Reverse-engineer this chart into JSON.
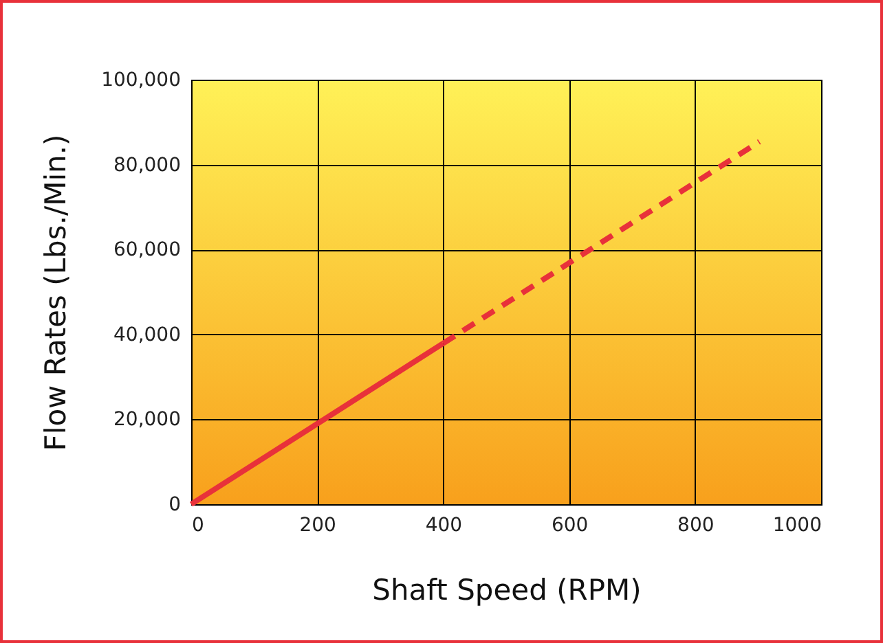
{
  "chart_data": {
    "type": "line",
    "xlabel": "Shaft Speed (RPM)",
    "ylabel": "Flow Rates (Lbs./Min.)",
    "xlim": [
      0,
      1000
    ],
    "xticks": [
      0,
      200,
      400,
      600,
      800,
      1000
    ],
    "ylim": [
      0,
      100000
    ],
    "yticks": [
      0,
      {
        "value": 20000,
        "label": "20,000"
      },
      {
        "value": 40000,
        "label": "40,000"
      },
      {
        "value": 60000,
        "label": "60,000"
      },
      {
        "value": 80000,
        "label": "80,000"
      },
      {
        "value": 100000,
        "label": "100,000"
      }
    ],
    "grid": true,
    "series": [
      {
        "color": "#e8313a",
        "line_style": "solid",
        "x": [
          0,
          400
        ],
        "values": [
          0,
          37900
        ]
      },
      {
        "color": "#e8313a",
        "line_style": "dashed",
        "x": [
          400,
          902
        ],
        "values": [
          37900,
          85400
        ]
      }
    ]
  }
}
